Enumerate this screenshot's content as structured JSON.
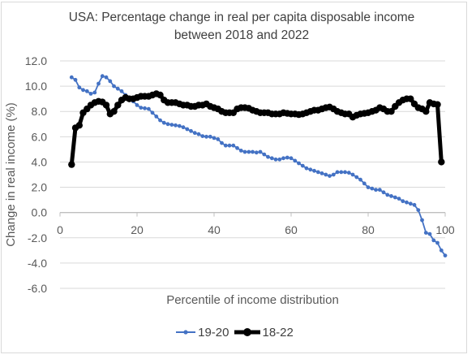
{
  "chart_data": {
    "type": "line",
    "title": "USA: Percentage change in real per capita disposable income\nbetween 2018 and 2022",
    "xlabel": "Percentile of income distribution",
    "ylabel": "Change in real income (%)",
    "xlim": [
      0,
      100
    ],
    "ylim": [
      -6,
      12
    ],
    "x_ticks": [
      0,
      20,
      40,
      60,
      80,
      100
    ],
    "y_ticks": [
      -6,
      -4,
      -2,
      0,
      2,
      4,
      6,
      8,
      10,
      12
    ],
    "y_tick_labels": [
      "-6.0",
      "-4.0",
      "-2.0",
      "0.0",
      "2.0",
      "4.0",
      "6.0",
      "8.0",
      "10.0",
      "12.0"
    ],
    "grid": "horizontal",
    "legend_position": "bottom",
    "series": [
      {
        "name": "19-20",
        "color": "#4472c4",
        "marker": "circle",
        "points": [
          [
            3,
            10.7
          ],
          [
            4,
            10.5
          ],
          [
            5,
            9.9
          ],
          [
            6,
            9.7
          ],
          [
            7,
            9.6
          ],
          [
            8,
            9.4
          ],
          [
            9,
            9.5
          ],
          [
            10,
            10.2
          ],
          [
            11,
            10.8
          ],
          [
            12,
            10.7
          ],
          [
            13,
            10.4
          ],
          [
            14,
            10.0
          ],
          [
            15,
            9.8
          ],
          [
            16,
            9.6
          ],
          [
            17,
            9.3
          ],
          [
            18,
            9.0
          ],
          [
            19,
            8.8
          ],
          [
            20,
            8.5
          ],
          [
            21,
            8.3
          ],
          [
            22,
            8.25
          ],
          [
            23,
            8.2
          ],
          [
            24,
            7.9
          ],
          [
            25,
            7.6
          ],
          [
            26,
            7.3
          ],
          [
            27,
            7.1
          ],
          [
            28,
            7.0
          ],
          [
            29,
            6.95
          ],
          [
            30,
            6.9
          ],
          [
            31,
            6.85
          ],
          [
            32,
            6.75
          ],
          [
            33,
            6.6
          ],
          [
            34,
            6.45
          ],
          [
            35,
            6.3
          ],
          [
            36,
            6.2
          ],
          [
            37,
            6.05
          ],
          [
            38,
            6.0
          ],
          [
            39,
            6.0
          ],
          [
            40,
            5.9
          ],
          [
            41,
            5.8
          ],
          [
            42,
            5.5
          ],
          [
            43,
            5.3
          ],
          [
            44,
            5.3
          ],
          [
            45,
            5.3
          ],
          [
            46,
            5.1
          ],
          [
            47,
            4.9
          ],
          [
            48,
            4.8
          ],
          [
            49,
            4.8
          ],
          [
            50,
            4.8
          ],
          [
            51,
            4.75
          ],
          [
            52,
            4.8
          ],
          [
            53,
            4.6
          ],
          [
            54,
            4.4
          ],
          [
            55,
            4.3
          ],
          [
            56,
            4.2
          ],
          [
            57,
            4.2
          ],
          [
            58,
            4.3
          ],
          [
            59,
            4.35
          ],
          [
            60,
            4.3
          ],
          [
            61,
            4.1
          ],
          [
            62,
            3.9
          ],
          [
            63,
            3.7
          ],
          [
            64,
            3.5
          ],
          [
            65,
            3.4
          ],
          [
            66,
            3.3
          ],
          [
            67,
            3.2
          ],
          [
            68,
            3.1
          ],
          [
            69,
            3.0
          ],
          [
            70,
            2.9
          ],
          [
            71,
            3.0
          ],
          [
            72,
            3.2
          ],
          [
            73,
            3.2
          ],
          [
            74,
            3.2
          ],
          [
            75,
            3.15
          ],
          [
            76,
            3.0
          ],
          [
            77,
            2.8
          ],
          [
            78,
            2.6
          ],
          [
            79,
            2.3
          ],
          [
            80,
            2.0
          ],
          [
            81,
            1.9
          ],
          [
            82,
            1.8
          ],
          [
            83,
            1.8
          ],
          [
            84,
            1.6
          ],
          [
            85,
            1.4
          ],
          [
            86,
            1.3
          ],
          [
            87,
            1.2
          ],
          [
            88,
            1.1
          ],
          [
            89,
            0.9
          ],
          [
            90,
            0.8
          ],
          [
            91,
            0.7
          ],
          [
            92,
            0.6
          ],
          [
            93,
            0.2
          ],
          [
            94,
            -0.6
          ],
          [
            95,
            -1.6
          ],
          [
            96,
            -1.7
          ],
          [
            97,
            -2.2
          ],
          [
            98,
            -2.4
          ],
          [
            99,
            -3.0
          ],
          [
            100,
            -3.4
          ]
        ]
      },
      {
        "name": "18-22",
        "color": "#000000",
        "marker": "circle",
        "points": [
          [
            3,
            3.8
          ],
          [
            4,
            6.7
          ],
          [
            5,
            6.9
          ],
          [
            6,
            7.9
          ],
          [
            7,
            8.2
          ],
          [
            8,
            8.5
          ],
          [
            9,
            8.7
          ],
          [
            10,
            8.8
          ],
          [
            11,
            8.75
          ],
          [
            12,
            8.5
          ],
          [
            13,
            7.8
          ],
          [
            14,
            8.0
          ],
          [
            15,
            8.5
          ],
          [
            16,
            8.9
          ],
          [
            17,
            9.1
          ],
          [
            18,
            9.0
          ],
          [
            19,
            9.0
          ],
          [
            20,
            9.1
          ],
          [
            21,
            9.2
          ],
          [
            22,
            9.2
          ],
          [
            23,
            9.2
          ],
          [
            24,
            9.3
          ],
          [
            25,
            9.4
          ],
          [
            26,
            9.3
          ],
          [
            27,
            8.9
          ],
          [
            28,
            8.7
          ],
          [
            29,
            8.7
          ],
          [
            30,
            8.7
          ],
          [
            31,
            8.6
          ],
          [
            32,
            8.5
          ],
          [
            33,
            8.5
          ],
          [
            34,
            8.4
          ],
          [
            35,
            8.4
          ],
          [
            36,
            8.5
          ],
          [
            37,
            8.5
          ],
          [
            38,
            8.6
          ],
          [
            39,
            8.4
          ],
          [
            40,
            8.3
          ],
          [
            41,
            8.2
          ],
          [
            42,
            8.0
          ],
          [
            43,
            7.9
          ],
          [
            44,
            7.9
          ],
          [
            45,
            7.9
          ],
          [
            46,
            8.2
          ],
          [
            47,
            8.3
          ],
          [
            48,
            8.3
          ],
          [
            49,
            8.25
          ],
          [
            50,
            8.1
          ],
          [
            51,
            8.0
          ],
          [
            52,
            7.9
          ],
          [
            53,
            7.9
          ],
          [
            54,
            7.9
          ],
          [
            55,
            7.8
          ],
          [
            56,
            7.8
          ],
          [
            57,
            7.8
          ],
          [
            58,
            7.9
          ],
          [
            59,
            7.85
          ],
          [
            60,
            7.8
          ],
          [
            61,
            7.8
          ],
          [
            62,
            7.75
          ],
          [
            63,
            7.8
          ],
          [
            64,
            7.9
          ],
          [
            65,
            8.0
          ],
          [
            66,
            8.1
          ],
          [
            67,
            8.1
          ],
          [
            68,
            8.2
          ],
          [
            69,
            8.3
          ],
          [
            70,
            8.35
          ],
          [
            71,
            8.2
          ],
          [
            72,
            8.0
          ],
          [
            73,
            7.9
          ],
          [
            74,
            7.8
          ],
          [
            75,
            7.8
          ],
          [
            76,
            7.55
          ],
          [
            77,
            7.7
          ],
          [
            78,
            7.8
          ],
          [
            79,
            7.85
          ],
          [
            80,
            7.9
          ],
          [
            81,
            8.0
          ],
          [
            82,
            8.1
          ],
          [
            83,
            8.3
          ],
          [
            84,
            8.2
          ],
          [
            85,
            8.0
          ],
          [
            86,
            8.0
          ],
          [
            87,
            8.4
          ],
          [
            88,
            8.7
          ],
          [
            89,
            8.9
          ],
          [
            90,
            9.0
          ],
          [
            91,
            9.0
          ],
          [
            92,
            8.6
          ],
          [
            93,
            8.3
          ],
          [
            94,
            8.2
          ],
          [
            95,
            8.0
          ],
          [
            96,
            8.7
          ],
          [
            97,
            8.6
          ],
          [
            98,
            8.55
          ],
          [
            99,
            4.0
          ]
        ]
      }
    ]
  }
}
